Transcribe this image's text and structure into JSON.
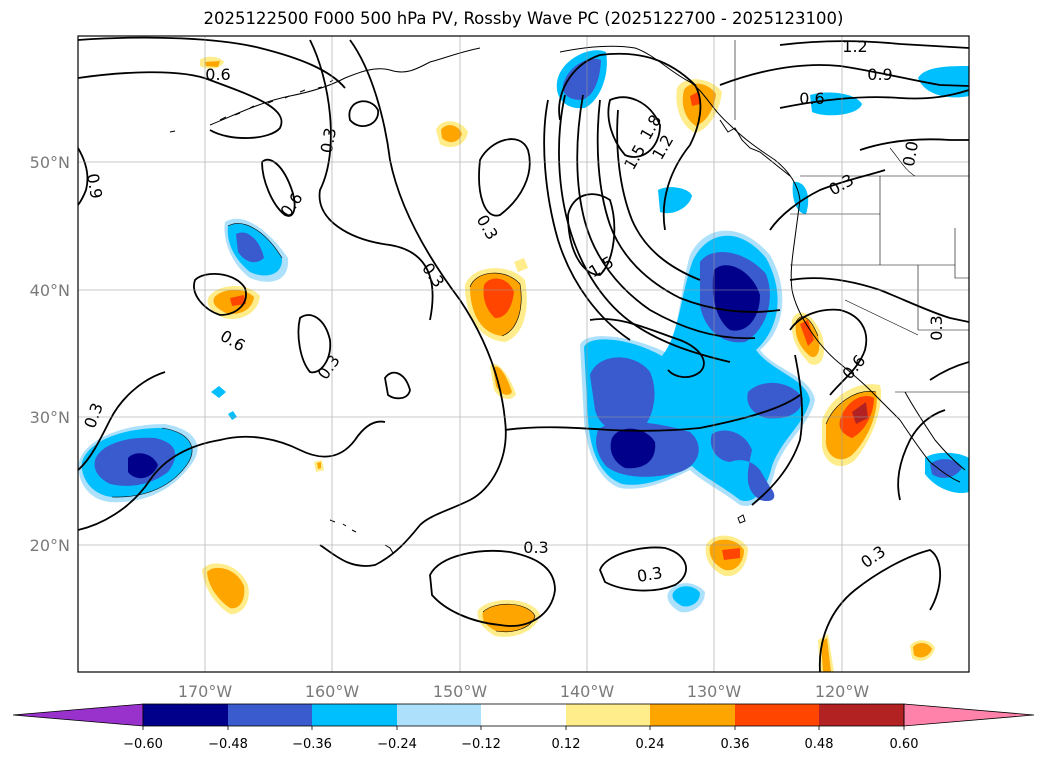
{
  "title": "2025122500 F000 500 hPa PV, Rossby Wave PC (2025122700 - 2025123100)",
  "axes": {
    "lat_labels": [
      "50°N",
      "40°N",
      "30°N",
      "20°N"
    ],
    "lon_labels": [
      "170°W",
      "160°W",
      "150°W",
      "140°W",
      "130°W",
      "120°W"
    ]
  },
  "contour_labels": [
    "0.6",
    "0.3",
    "0.9",
    "0.6",
    "0.6",
    "0.3",
    "0.3",
    "0.3",
    "0.3",
    "1.8",
    "1.5",
    "1.2",
    "1.5",
    "1.2",
    "0.9",
    "0.6",
    "0.0",
    "0.3",
    "0.6",
    "0.3",
    "0.3",
    "0.3",
    "0.3"
  ],
  "colorbar": {
    "ticks": [
      "−0.60",
      "−0.48",
      "−0.36",
      "−0.24",
      "−0.12",
      "0.12",
      "0.24",
      "0.36",
      "0.48",
      "0.60"
    ],
    "colors": {
      "lt_neg060": "#9932CC",
      "neg060_neg048": "#00008B",
      "neg048_neg036": "#3A5BCD",
      "neg036_neg024": "#00BFFF",
      "neg024_neg012": "#ADE0FA",
      "neg012_012": "#FFFFFF",
      "p012_024": "#FFEC8B",
      "p024_036": "#FFA500",
      "p036_048": "#FF4500",
      "p048_060": "#B22222",
      "gt_060": "#FF82AB"
    }
  }
}
